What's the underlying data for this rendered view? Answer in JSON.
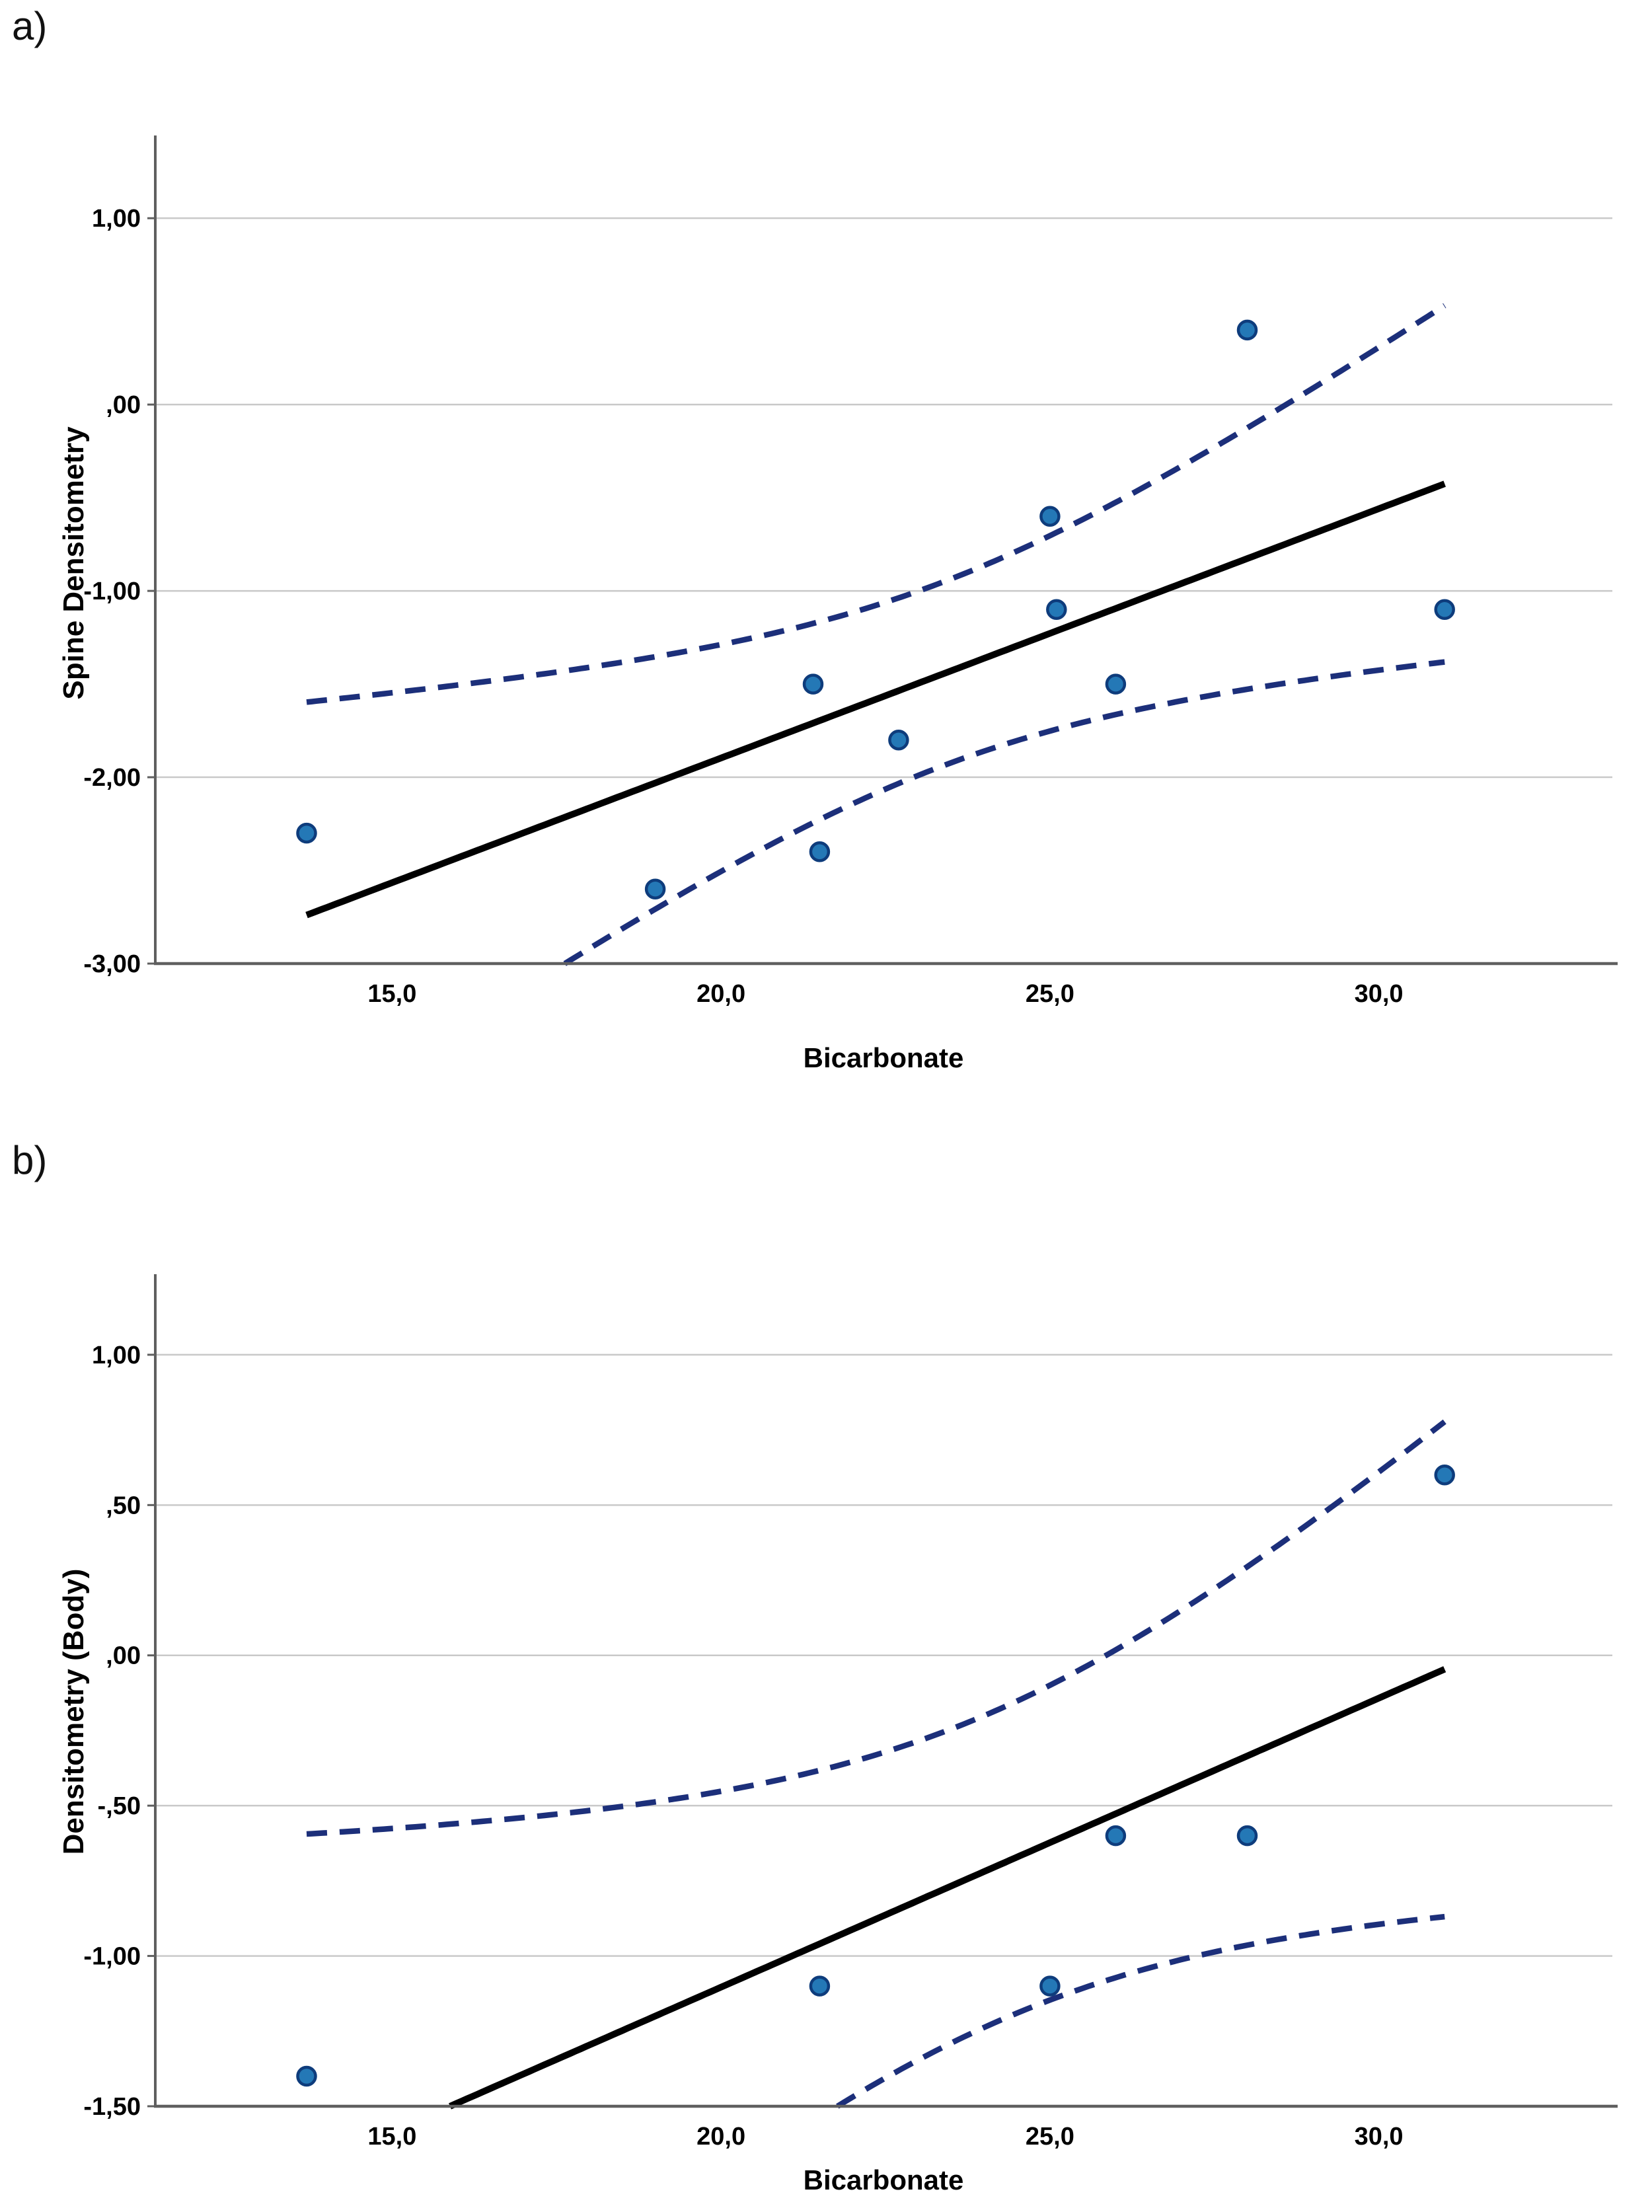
{
  "figure": {
    "background": "#ffffff",
    "panel_a_label": "a)",
    "panel_b_label": "b)"
  },
  "chart_data": [
    {
      "id": "a",
      "panel_label": "a)",
      "type": "scatter",
      "title": "",
      "xlabel": "Bicarbonate",
      "ylabel": "Spine Densitometry",
      "xlim": [
        11.4,
        33.55
      ],
      "ylim": [
        -3.0,
        1.444
      ],
      "x_ticks": {
        "values": [
          15,
          20,
          25,
          30
        ],
        "labels": [
          "15,0",
          "20,0",
          "25,0",
          "30,0"
        ]
      },
      "y_ticks": {
        "values": [
          1,
          0,
          -1,
          -2,
          -3
        ],
        "labels": [
          "1,00",
          ",00",
          "-1,00",
          "-2,00",
          "-3,00"
        ]
      },
      "grid": "horizontal",
      "legend": "none",
      "points": [
        [
          13.7,
          -2.3
        ],
        [
          19.0,
          -2.6
        ],
        [
          21.4,
          -1.5
        ],
        [
          21.5,
          -2.4
        ],
        [
          22.7,
          -1.8
        ],
        [
          25.0,
          -0.6
        ],
        [
          25.1,
          -1.1
        ],
        [
          26.0,
          -1.5
        ],
        [
          28.0,
          0.4
        ],
        [
          31.0,
          -1.1
        ]
      ],
      "fit_line": {
        "type": "linear_ols",
        "x_range": [
          13.7,
          31.0
        ],
        "style": "solid"
      },
      "confidence_band": {
        "level": 0.95,
        "x_range": [
          13.7,
          31.0
        ],
        "style": "dashed"
      }
    },
    {
      "id": "b",
      "panel_label": "b)",
      "type": "scatter",
      "title": "",
      "xlabel": "Bicarbonate",
      "ylabel": "Densitometry (Body)",
      "xlim": [
        11.4,
        33.55
      ],
      "ylim": [
        -1.5,
        1.268
      ],
      "x_ticks": {
        "values": [
          15,
          20,
          25,
          30
        ],
        "labels": [
          "15,0",
          "20,0",
          "25,0",
          "30,0"
        ]
      },
      "y_ticks": {
        "values": [
          1,
          0.5,
          0,
          -0.5,
          -1,
          -1.5
        ],
        "labels": [
          "1,00",
          ",50",
          ",00",
          "-,50",
          "-1,00",
          "-1,50"
        ]
      },
      "grid": "horizontal",
      "legend": "none",
      "points": [
        [
          13.7,
          -1.4
        ],
        [
          21.5,
          -1.1
        ],
        [
          25.0,
          -1.1
        ],
        [
          26.0,
          -0.6
        ],
        [
          28.0,
          -0.6
        ],
        [
          31.0,
          0.6
        ]
      ],
      "fit_line": {
        "type": "linear_ols",
        "x_range": [
          13.7,
          31.0
        ],
        "style": "solid"
      },
      "confidence_band": {
        "level": 0.95,
        "x_range": [
          13.7,
          31.0
        ],
        "style": "dashed"
      }
    }
  ],
  "styles": {
    "marker_fill": "#2478b6",
    "marker_stroke": "#0e3c7c",
    "ci_color": "#1c2f7a",
    "fit_color": "#000000",
    "grid_color": "#c9c9c9",
    "axis_color": "#5f5f5f",
    "text_color": "#000000"
  }
}
